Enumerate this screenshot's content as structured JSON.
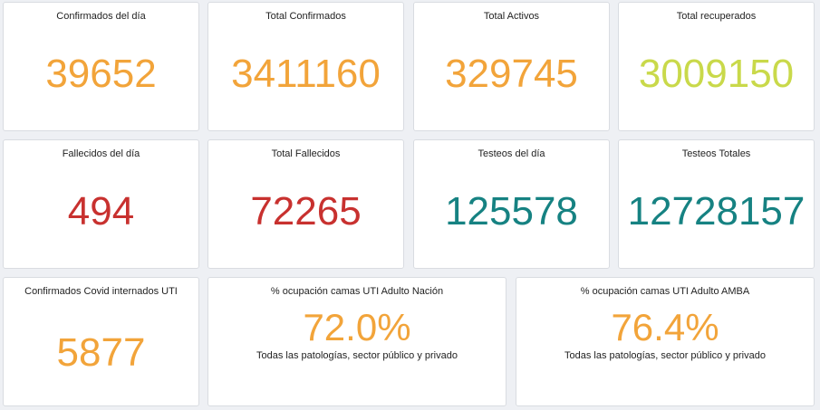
{
  "colors": {
    "orange": "#f2a43a",
    "lime": "#c9d94a",
    "red": "#c8312f",
    "teal": "#168282"
  },
  "cards": {
    "confirmados_dia": {
      "title": "Confirmados del día",
      "value": "39652"
    },
    "total_confirmados": {
      "title": "Total Confirmados",
      "value": "3411160"
    },
    "total_activos": {
      "title": "Total Activos",
      "value": "329745"
    },
    "total_recuperados": {
      "title": "Total recuperados",
      "value": "3009150"
    },
    "fallecidos_dia": {
      "title": "Fallecidos del día",
      "value": "494"
    },
    "total_fallecidos": {
      "title": "Total Fallecidos",
      "value": "72265"
    },
    "testeos_dia": {
      "title": "Testeos del día",
      "value": "125578"
    },
    "testeos_totales": {
      "title": "Testeos Totales",
      "value": "12728157"
    },
    "internados_uti": {
      "title": "Confirmados Covid internados UTI",
      "value": "5877"
    },
    "ocupacion_nacion": {
      "title": "% ocupación camas UTI Adulto Nación",
      "value": "72.0%",
      "subtitle": "Todas las patologías, sector público y privado"
    },
    "ocupacion_amba": {
      "title": "% ocupación camas UTI Adulto AMBA",
      "value": "76.4%",
      "subtitle": "Todas las patologías, sector público y privado"
    }
  }
}
